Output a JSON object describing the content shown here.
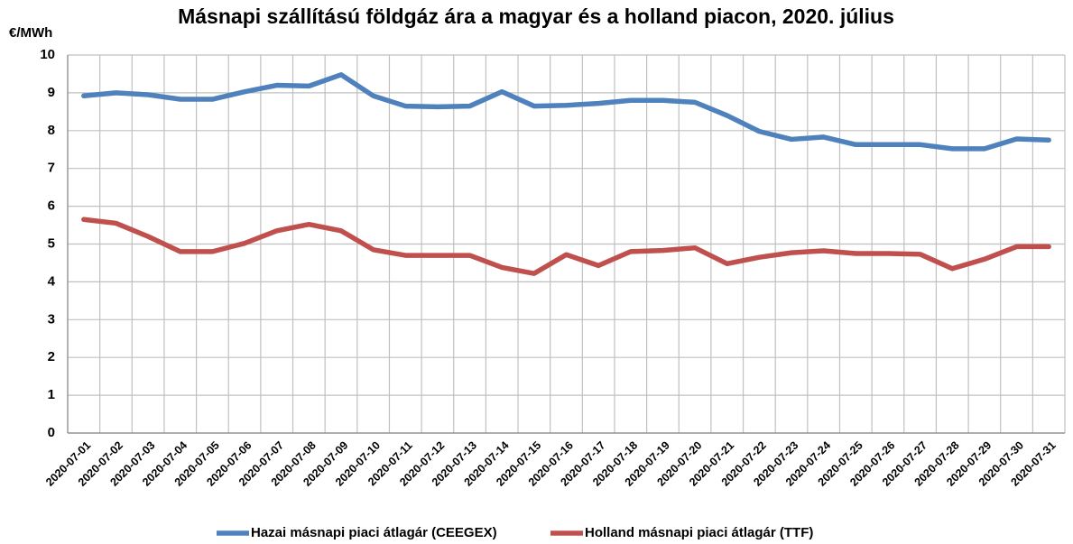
{
  "chart_data": {
    "type": "line",
    "title": "Másnapi szállítású földgáz ára a magyar és a holland piacon, 2020. július",
    "y_label": "€/MWh",
    "categories": [
      "2020-07-01",
      "2020-07-02",
      "2020-07-03",
      "2020-07-04",
      "2020-07-05",
      "2020-07-06",
      "2020-07-07",
      "2020-07-08",
      "2020-07-09",
      "2020-07-10",
      "2020-07-11",
      "2020-07-12",
      "2020-07-13",
      "2020-07-14",
      "2020-07-15",
      "2020-07-16",
      "2020-07-17",
      "2020-07-18",
      "2020-07-19",
      "2020-07-20",
      "2020-07-21",
      "2020-07-22",
      "2020-07-23",
      "2020-07-24",
      "2020-07-25",
      "2020-07-26",
      "2020-07-27",
      "2020-07-28",
      "2020-07-29",
      "2020-07-30",
      "2020-07-31"
    ],
    "series": [
      {
        "name": "Hazai másnapi piaci átlagár (CEEGEX)",
        "color": "#4f81bd",
        "values": [
          8.92,
          9.0,
          8.95,
          8.83,
          8.83,
          9.03,
          9.2,
          9.18,
          9.48,
          8.92,
          8.65,
          8.63,
          8.65,
          9.03,
          8.65,
          8.67,
          8.72,
          8.8,
          8.8,
          8.75,
          8.4,
          7.98,
          7.77,
          7.83,
          7.63,
          7.63,
          7.63,
          7.52,
          7.52,
          7.78,
          7.75
        ]
      },
      {
        "name": "Holland másnapi piaci átlagár (TTF)",
        "color": "#c0504d",
        "values": [
          5.65,
          5.55,
          5.2,
          4.8,
          4.8,
          5.02,
          5.35,
          5.52,
          5.35,
          4.85,
          4.7,
          4.7,
          4.7,
          4.38,
          4.22,
          4.72,
          4.43,
          4.8,
          4.83,
          4.9,
          4.48,
          4.65,
          4.77,
          4.82,
          4.75,
          4.75,
          4.73,
          4.35,
          4.6,
          4.93,
          4.93
        ]
      }
    ],
    "ylim": [
      0,
      10
    ],
    "yticks": [
      0,
      1,
      2,
      3,
      4,
      5,
      6,
      7,
      8,
      9,
      10
    ],
    "grid": true,
    "legend": "bottom"
  }
}
